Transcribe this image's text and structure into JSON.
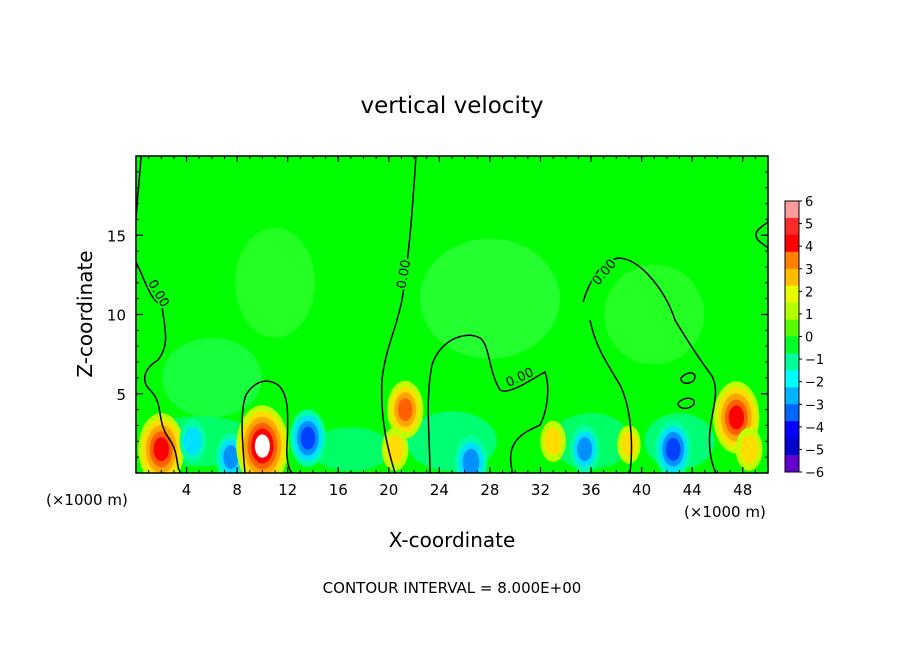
{
  "chart_data": {
    "type": "heatmap",
    "title": "vertical velocity",
    "xlabel": "X-coordinate",
    "ylabel": "Z-coordinate",
    "x_unit_left": "(×1000 m)",
    "x_unit_right": "(×1000 m)",
    "xlim": [
      0,
      50
    ],
    "ylim": [
      0,
      20
    ],
    "x_ticks": [
      4,
      8,
      12,
      16,
      20,
      24,
      28,
      32,
      36,
      40,
      44,
      48
    ],
    "y_ticks": [
      5,
      10,
      15
    ],
    "contour_label": "0.00",
    "contour_label_positions": [
      [
        1.5,
        11.2
      ],
      [
        21.5,
        12.5
      ],
      [
        30.5,
        5.8
      ],
      [
        37.3,
        12.5
      ]
    ],
    "footer": "CONTOUR INTERVAL = 8.000E+00",
    "colorbar": {
      "levels": [
        6,
        5,
        4,
        3,
        2,
        1,
        0,
        -1,
        -2,
        -3,
        -4,
        -5,
        -6
      ],
      "colors": [
        "#ff9b9b",
        "#ff2a2a",
        "#ff0000",
        "#ff7f00",
        "#ffbf00",
        "#e6ff00",
        "#b3ff00",
        "#55ff00",
        "#00ff2a",
        "#00ff99",
        "#00ffff",
        "#00b3ff",
        "#0066ff",
        "#0000ff",
        "#0000cc",
        "#6600cc"
      ]
    },
    "features": [
      {
        "x": 2.0,
        "z": 1.5,
        "value": 5.0
      },
      {
        "x": 4.5,
        "z": 2.0,
        "value": -2.0
      },
      {
        "x": 7.5,
        "z": 1.0,
        "value": -2.5
      },
      {
        "x": 10.0,
        "z": 1.7,
        "value": 6.0
      },
      {
        "x": 13.6,
        "z": 2.2,
        "value": -3.5
      },
      {
        "x": 21.3,
        "z": 4.0,
        "value": 3.5
      },
      {
        "x": 20.5,
        "z": 1.5,
        "value": 2.0
      },
      {
        "x": 26.5,
        "z": 0.7,
        "value": -3.0
      },
      {
        "x": 33.0,
        "z": 2.0,
        "value": 1.8
      },
      {
        "x": 35.5,
        "z": 1.5,
        "value": -2.5
      },
      {
        "x": 39.0,
        "z": 1.8,
        "value": 1.5
      },
      {
        "x": 42.5,
        "z": 1.5,
        "value": -3.5
      },
      {
        "x": 47.5,
        "z": 3.5,
        "value": 5.0
      },
      {
        "x": 48.5,
        "z": 1.5,
        "value": 2.0
      }
    ]
  }
}
